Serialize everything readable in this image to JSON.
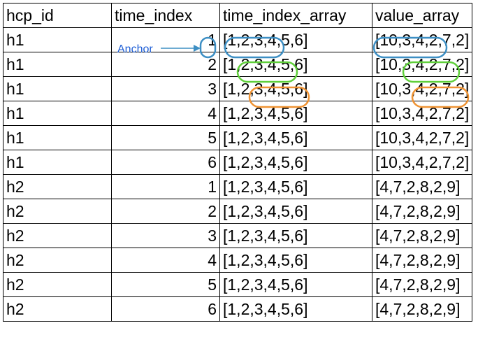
{
  "table": {
    "headers": [
      "hcp_id",
      "time_index",
      "time_index_array",
      "value_array"
    ],
    "rows": [
      [
        "h1",
        "1",
        "[1,2,3,4,5,6]",
        "[10,3,4,2,7,2]"
      ],
      [
        "h1",
        "2",
        "[1,2,3,4,5,6]",
        "[10,3,4,2,7,2]"
      ],
      [
        "h1",
        "3",
        "[1,2,3,4,5,6]",
        "[10,3,4,2,7,2]"
      ],
      [
        "h1",
        "4",
        "[1,2,3,4,5,6]",
        "[10,3,4,2,7,2]"
      ],
      [
        "h1",
        "5",
        "[1,2,3,4,5,6]",
        "[10,3,4,2,7,2]"
      ],
      [
        "h1",
        "6",
        "[1,2,3,4,5,6]",
        "[10,3,4,2,7,2]"
      ],
      [
        "h2",
        "1",
        "[1,2,3,4,5,6]",
        "[4,7,2,8,2,9]"
      ],
      [
        "h2",
        "2",
        "[1,2,3,4,5,6]",
        "[4,7,2,8,2,9]"
      ],
      [
        "h2",
        "3",
        "[1,2,3,4,5,6]",
        "[4,7,2,8,2,9]"
      ],
      [
        "h2",
        "4",
        "[1,2,3,4,5,6]",
        "[4,7,2,8,2,9]"
      ],
      [
        "h2",
        "5",
        "[1,2,3,4,5,6]",
        "[4,7,2,8,2,9]"
      ],
      [
        "h2",
        "6",
        "[1,2,3,4,5,6]",
        "[4,7,2,8,2,9]"
      ]
    ]
  },
  "annotations": {
    "anchor_label": "Anchor",
    "colors": {
      "window1": "#3d8fc4",
      "window2": "#5fcf3a",
      "window3": "#ef9333",
      "anchor_text": "#1f5fd6"
    }
  }
}
